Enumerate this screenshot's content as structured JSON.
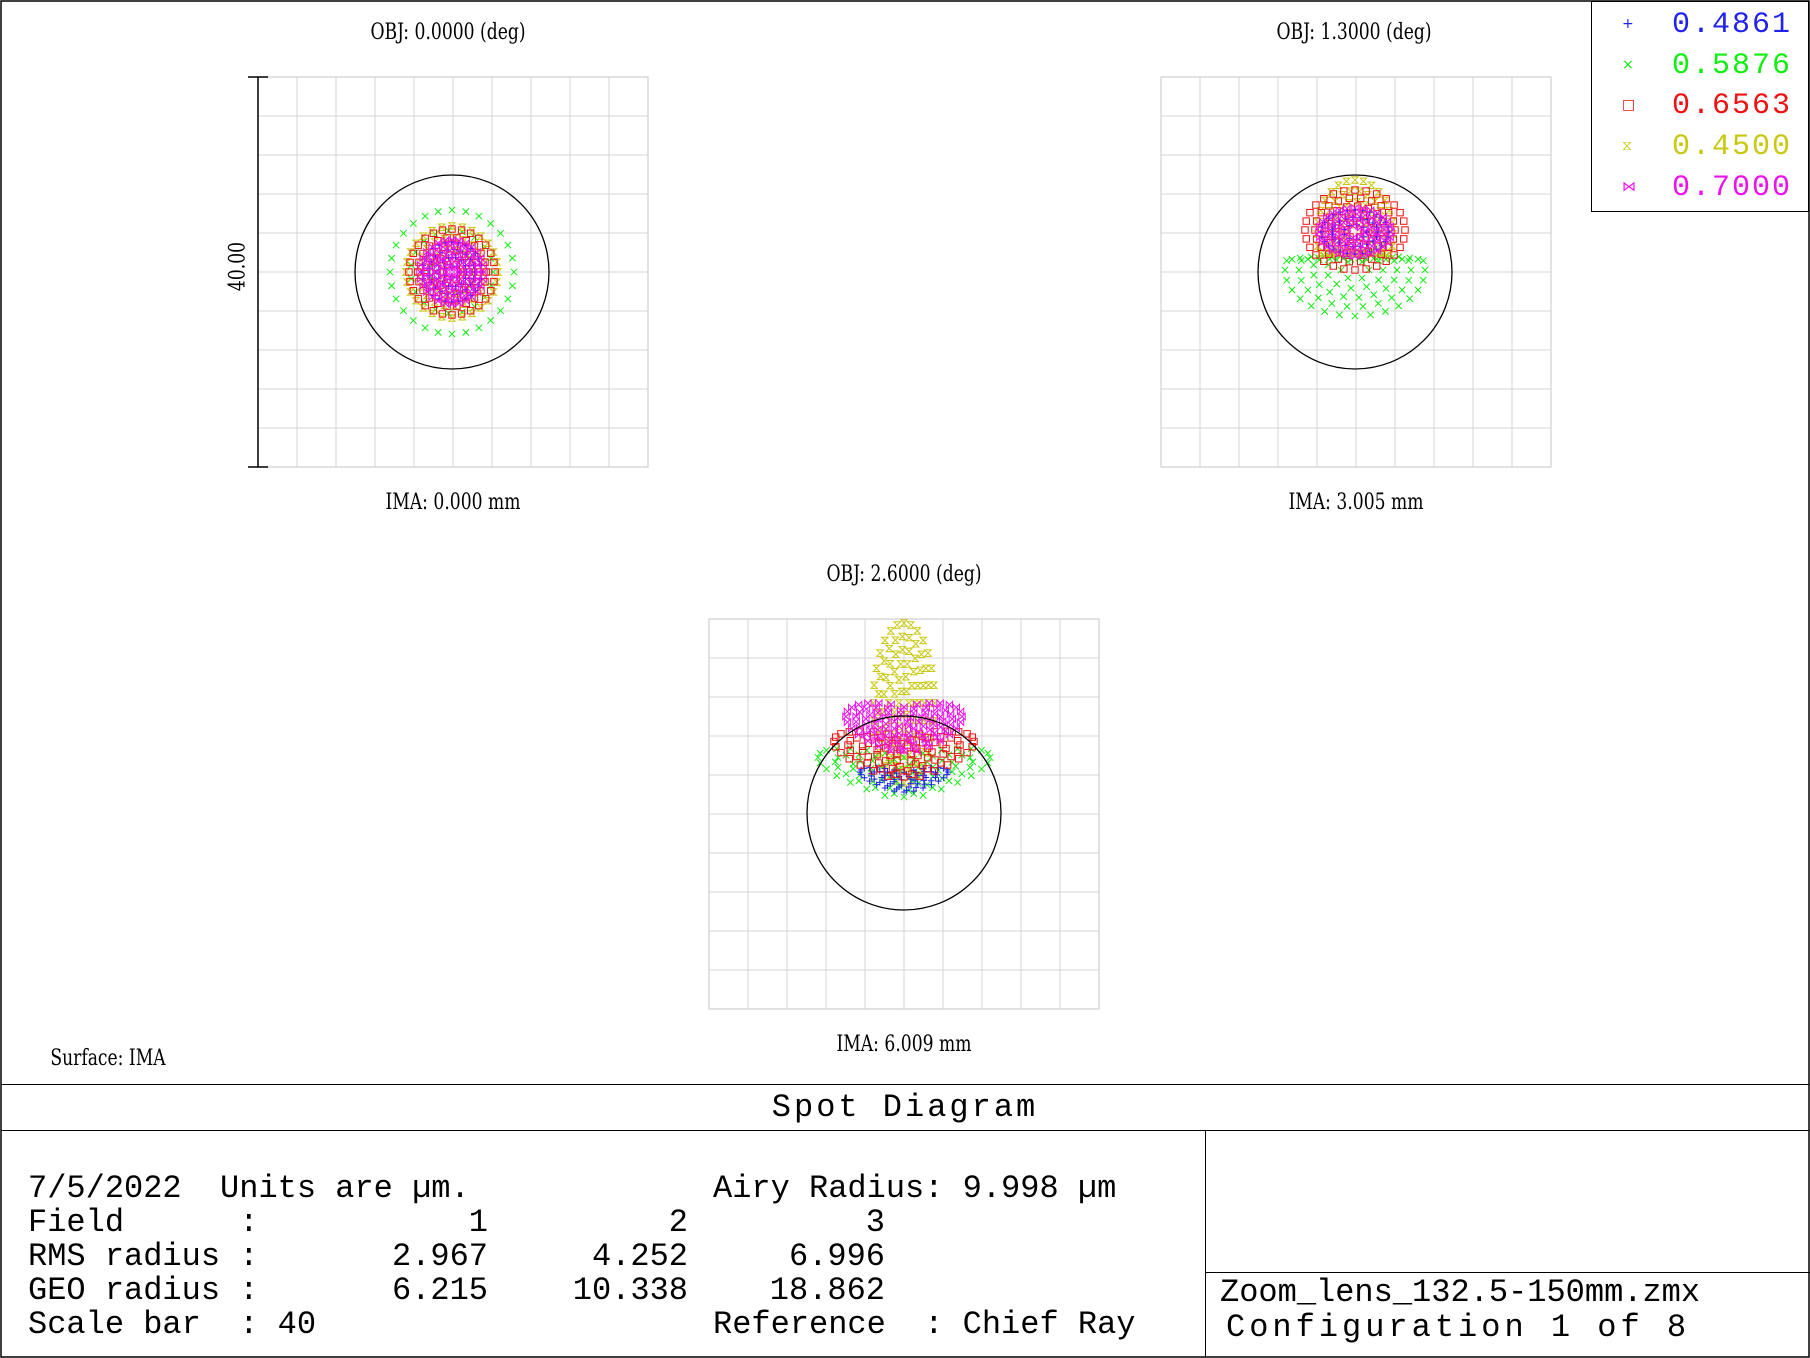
{
  "surface_label": "Surface: IMA",
  "scale_label": "40.00",
  "panels": [
    {
      "obj": "OBJ: 0.0000 (deg)",
      "ima": "IMA: 0.000 mm"
    },
    {
      "obj": "OBJ: 1.3000 (deg)",
      "ima": "IMA: 3.005 mm"
    },
    {
      "obj": "OBJ: 2.6000 (deg)",
      "ima": "IMA: 6.009 mm"
    }
  ],
  "legend": [
    {
      "value": "0.4861",
      "symbol": "+",
      "color": "#2222ee"
    },
    {
      "value": "0.5876",
      "symbol": "×",
      "color": "#11ee11"
    },
    {
      "value": "0.6563",
      "symbol": "□",
      "color": "#ee1111"
    },
    {
      "value": "0.4500",
      "symbol": "⧖",
      "color": "#c8c811"
    },
    {
      "value": "0.7000",
      "symbol": "⋈",
      "color": "#ee11ee"
    }
  ],
  "title": "Spot Diagram",
  "info": {
    "line1_date": "7/5/2022  Units are µm.",
    "line1_airy": "Airy Radius: 9.998 µm",
    "field_label": "Field      :",
    "field_values": [
      "1",
      "2",
      "3"
    ],
    "rms_label": "RMS radius :",
    "rms_values": [
      "2.967",
      "4.252",
      "6.996"
    ],
    "geo_label": "GEO radius :",
    "geo_values": [
      "6.215",
      "10.338",
      "18.862"
    ],
    "scale_label": "Scale bar  : 40",
    "reference_label": "Reference  : Chief Ray"
  },
  "file_name": "Zoom_lens_132.5-150mm.zmx",
  "configuration": "Configuration 1 of 8"
}
